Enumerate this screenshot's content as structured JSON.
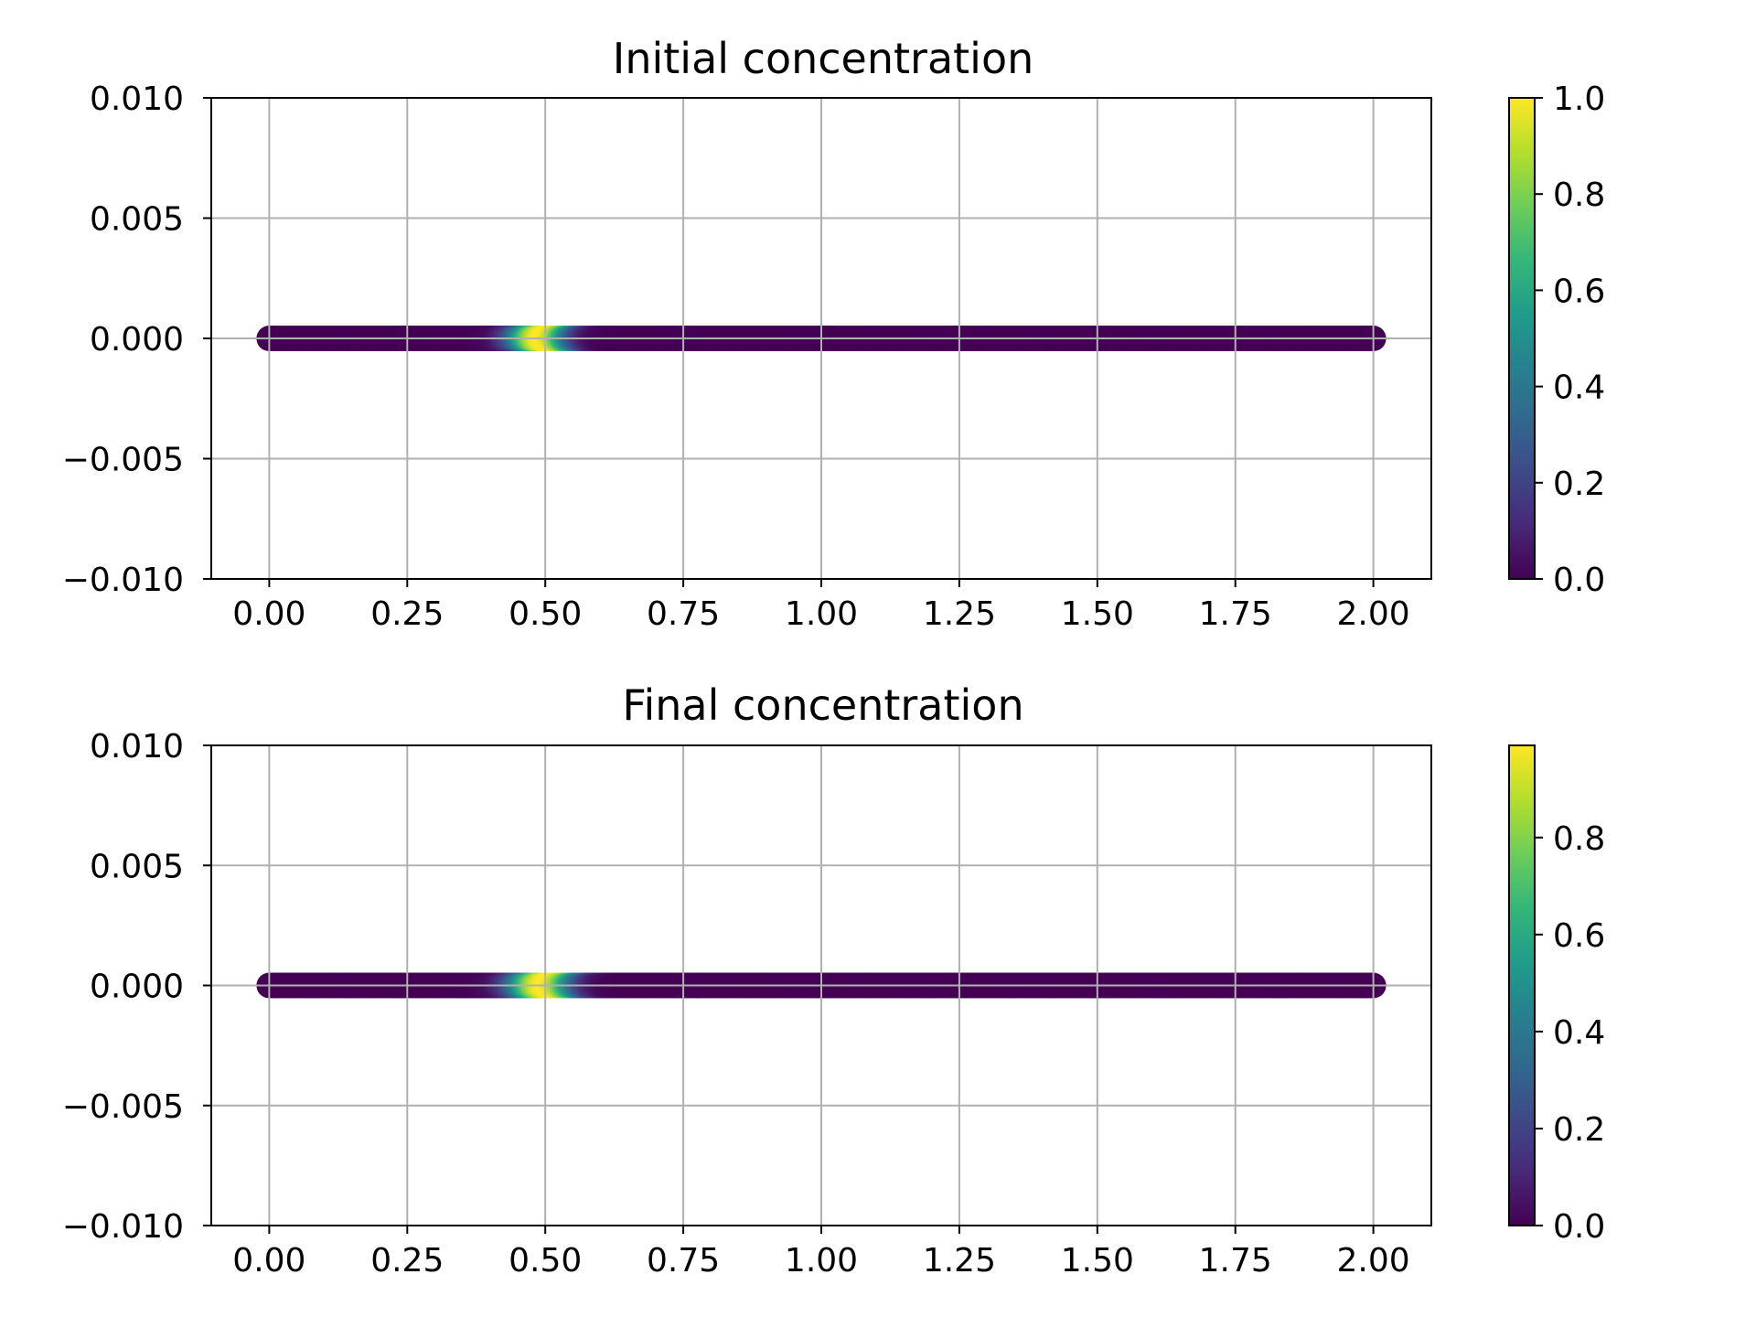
{
  "chart_data": [
    {
      "type": "scatter",
      "title": "Initial concentration",
      "xlabel": "",
      "ylabel": "",
      "xlim": [
        -0.105,
        2.105
      ],
      "ylim": [
        -0.01,
        0.01
      ],
      "grid": true,
      "x_ticks": [
        "0.00",
        "0.25",
        "0.50",
        "0.75",
        "1.00",
        "1.25",
        "1.50",
        "1.75",
        "2.00"
      ],
      "y_ticks": [
        "−0.010",
        "−0.005",
        "0.000",
        "0.005",
        "0.010"
      ],
      "x_tick_values": [
        0,
        0.25,
        0.5,
        0.75,
        1.0,
        1.25,
        1.5,
        1.75,
        2.0
      ],
      "y_tick_values": [
        -0.01,
        -0.005,
        0,
        0.005,
        0.01
      ],
      "x_range": [
        0,
        2
      ],
      "y_value": 0,
      "color_peak": {
        "center": 0.5,
        "width": 0.05,
        "max": 1.0
      },
      "colorbar": {
        "colormap": "viridis",
        "range": [
          0,
          1.0
        ],
        "tick_values": [
          0,
          0.2,
          0.4,
          0.6,
          0.8,
          1.0
        ],
        "tick_labels": [
          "0.0",
          "0.2",
          "0.4",
          "0.6",
          "0.8",
          "1.0"
        ]
      }
    },
    {
      "type": "scatter",
      "title": "Final concentration",
      "xlabel": "",
      "ylabel": "",
      "xlim": [
        -0.105,
        2.105
      ],
      "ylim": [
        -0.01,
        0.01
      ],
      "grid": true,
      "x_ticks": [
        "0.00",
        "0.25",
        "0.50",
        "0.75",
        "1.00",
        "1.25",
        "1.50",
        "1.75",
        "2.00"
      ],
      "y_ticks": [
        "−0.010",
        "−0.005",
        "0.000",
        "0.005",
        "0.010"
      ],
      "x_tick_values": [
        0,
        0.25,
        0.5,
        0.75,
        1.0,
        1.25,
        1.5,
        1.75,
        2.0
      ],
      "y_tick_values": [
        -0.01,
        -0.005,
        0,
        0.005,
        0.01
      ],
      "x_range": [
        0,
        2
      ],
      "y_value": 0,
      "color_peak": {
        "center": 0.505,
        "width": 0.055,
        "max": 0.99
      },
      "colorbar": {
        "colormap": "viridis",
        "range": [
          0,
          0.99
        ],
        "tick_values": [
          0,
          0.2,
          0.4,
          0.6,
          0.8
        ],
        "tick_labels": [
          "0.0",
          "0.2",
          "0.4",
          "0.6",
          "0.8"
        ]
      }
    }
  ]
}
